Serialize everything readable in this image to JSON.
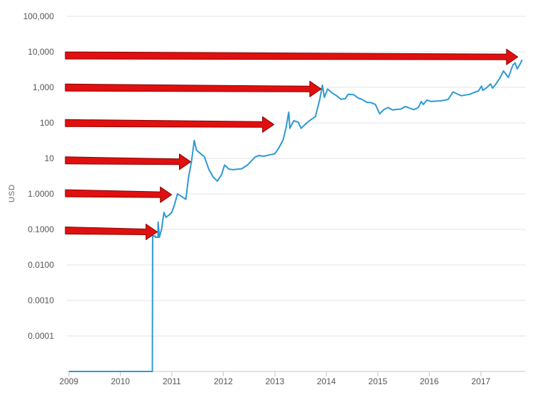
{
  "chart_data": {
    "type": "line",
    "title": "",
    "xlabel": "",
    "ylabel": "USD",
    "y_scale": "log",
    "ylim": [
      1e-05,
      100000
    ],
    "xlim": [
      "2009-01-01",
      "2017-12-01"
    ],
    "grid": true,
    "y_ticks": [
      {
        "value": 100000,
        "label": "100,000"
      },
      {
        "value": 10000,
        "label": "10,000"
      },
      {
        "value": 1000,
        "label": "1,000"
      },
      {
        "value": 100,
        "label": "100"
      },
      {
        "value": 10,
        "label": "10"
      },
      {
        "value": 1,
        "label": "1.0000"
      },
      {
        "value": 0.1,
        "label": "0.1000"
      },
      {
        "value": 0.01,
        "label": "0.0100"
      },
      {
        "value": 0.001,
        "label": "0.0010"
      },
      {
        "value": 0.0001,
        "label": "0.0001"
      }
    ],
    "x_ticks": [
      {
        "value": "2009-01-01",
        "label": "2009"
      },
      {
        "value": "2010-01-01",
        "label": "2010"
      },
      {
        "value": "2011-01-01",
        "label": "2011"
      },
      {
        "value": "2012-01-01",
        "label": "2012"
      },
      {
        "value": "2013-01-01",
        "label": "2013"
      },
      {
        "value": "2014-01-01",
        "label": "2014"
      },
      {
        "value": "2015-01-01",
        "label": "2015"
      },
      {
        "value": "2016-01-01",
        "label": "2016"
      },
      {
        "value": "2017-01-01",
        "label": "2017"
      }
    ],
    "series": [
      {
        "color": "#2b9ad6",
        "points": [
          [
            "2009-01-01",
            1e-05
          ],
          [
            "2010-08-16",
            1e-05
          ],
          [
            "2010-08-17",
            0.0008
          ],
          [
            "2010-08-18",
            0.065
          ],
          [
            "2010-09-05",
            0.065
          ],
          [
            "2010-09-06",
            0.06
          ],
          [
            "2010-09-25",
            0.06
          ],
          [
            "2010-09-26",
            0.16
          ],
          [
            "2010-10-05",
            0.06
          ],
          [
            "2010-10-20",
            0.1
          ],
          [
            "2010-11-06",
            0.3
          ],
          [
            "2010-11-20",
            0.22
          ],
          [
            "2010-12-10",
            0.25
          ],
          [
            "2010-12-31",
            0.3
          ],
          [
            "2011-01-20",
            0.5
          ],
          [
            "2011-02-10",
            1.0
          ],
          [
            "2011-03-01",
            0.9
          ],
          [
            "2011-03-20",
            0.8
          ],
          [
            "2011-04-10",
            0.7
          ],
          [
            "2011-04-30",
            3.0
          ],
          [
            "2011-05-20",
            8.0
          ],
          [
            "2011-06-09",
            32
          ],
          [
            "2011-06-25",
            17
          ],
          [
            "2011-07-20",
            14
          ],
          [
            "2011-08-20",
            11
          ],
          [
            "2011-09-20",
            5
          ],
          [
            "2011-10-20",
            3
          ],
          [
            "2011-11-20",
            2.3
          ],
          [
            "2011-12-20",
            3.5
          ],
          [
            "2012-01-10",
            6.5
          ],
          [
            "2012-02-10",
            5
          ],
          [
            "2012-03-10",
            4.8
          ],
          [
            "2012-05-10",
            5.1
          ],
          [
            "2012-06-20",
            6.5
          ],
          [
            "2012-08-15",
            11
          ],
          [
            "2012-09-10",
            12
          ],
          [
            "2012-10-15",
            11.5
          ],
          [
            "2012-11-20",
            12.5
          ],
          [
            "2012-12-31",
            13.5
          ],
          [
            "2013-01-30",
            20
          ],
          [
            "2013-02-28",
            33
          ],
          [
            "2013-03-20",
            70
          ],
          [
            "2013-04-09",
            200
          ],
          [
            "2013-04-17",
            70
          ],
          [
            "2013-05-15",
            115
          ],
          [
            "2013-06-15",
            105
          ],
          [
            "2013-07-06",
            70
          ],
          [
            "2013-08-15",
            100
          ],
          [
            "2013-09-15",
            125
          ],
          [
            "2013-10-15",
            150
          ],
          [
            "2013-11-15",
            450
          ],
          [
            "2013-12-04",
            1150
          ],
          [
            "2013-12-18",
            520
          ],
          [
            "2014-01-10",
            900
          ],
          [
            "2014-02-10",
            700
          ],
          [
            "2014-03-15",
            580
          ],
          [
            "2014-04-15",
            460
          ],
          [
            "2014-05-15",
            480
          ],
          [
            "2014-06-05",
            640
          ],
          [
            "2014-07-15",
            620
          ],
          [
            "2014-08-15",
            500
          ],
          [
            "2014-09-15",
            450
          ],
          [
            "2014-10-15",
            380
          ],
          [
            "2014-11-15",
            370
          ],
          [
            "2014-12-15",
            330
          ],
          [
            "2015-01-14",
            180
          ],
          [
            "2015-02-15",
            240
          ],
          [
            "2015-03-15",
            270
          ],
          [
            "2015-04-15",
            230
          ],
          [
            "2015-05-15",
            240
          ],
          [
            "2015-06-15",
            245
          ],
          [
            "2015-07-15",
            290
          ],
          [
            "2015-08-15",
            260
          ],
          [
            "2015-09-15",
            235
          ],
          [
            "2015-10-15",
            270
          ],
          [
            "2015-11-05",
            400
          ],
          [
            "2015-11-20",
            330
          ],
          [
            "2015-12-15",
            440
          ],
          [
            "2016-01-15",
            400
          ],
          [
            "2016-02-15",
            410
          ],
          [
            "2016-03-15",
            415
          ],
          [
            "2016-04-15",
            430
          ],
          [
            "2016-05-15",
            460
          ],
          [
            "2016-06-17",
            740
          ],
          [
            "2016-07-15",
            660
          ],
          [
            "2016-08-15",
            580
          ],
          [
            "2016-09-15",
            610
          ],
          [
            "2016-10-15",
            640
          ],
          [
            "2016-11-15",
            720
          ],
          [
            "2016-12-15",
            790
          ],
          [
            "2017-01-05",
            1080
          ],
          [
            "2017-01-15",
            820
          ],
          [
            "2017-02-15",
            1010
          ],
          [
            "2017-03-10",
            1250
          ],
          [
            "2017-03-25",
            950
          ],
          [
            "2017-04-15",
            1200
          ],
          [
            "2017-05-15",
            1800
          ],
          [
            "2017-06-10",
            2900
          ],
          [
            "2017-07-15",
            1900
          ],
          [
            "2017-08-15",
            4200
          ],
          [
            "2017-09-01",
            4900
          ],
          [
            "2017-09-15",
            3300
          ],
          [
            "2017-10-10",
            4800
          ],
          [
            "2017-10-20",
            6000
          ]
        ]
      }
    ],
    "annotations": [
      {
        "type": "arrow",
        "color": "#e01010",
        "target": {
          "x": "2017-09-20",
          "y": 7200
        }
      },
      {
        "type": "arrow",
        "color": "#e01010",
        "target": {
          "x": "2013-11-25",
          "y": 900
        }
      },
      {
        "type": "arrow",
        "color": "#e01010",
        "target": {
          "x": "2012-12-25",
          "y": 90
        }
      },
      {
        "type": "arrow",
        "color": "#e01010",
        "target": {
          "x": "2011-05-15",
          "y": 8
        }
      },
      {
        "type": "arrow",
        "color": "#e01010",
        "target": {
          "x": "2010-12-31",
          "y": 0.95
        }
      },
      {
        "type": "arrow",
        "color": "#e01010",
        "target": {
          "x": "2010-09-20",
          "y": 0.085
        }
      }
    ]
  }
}
